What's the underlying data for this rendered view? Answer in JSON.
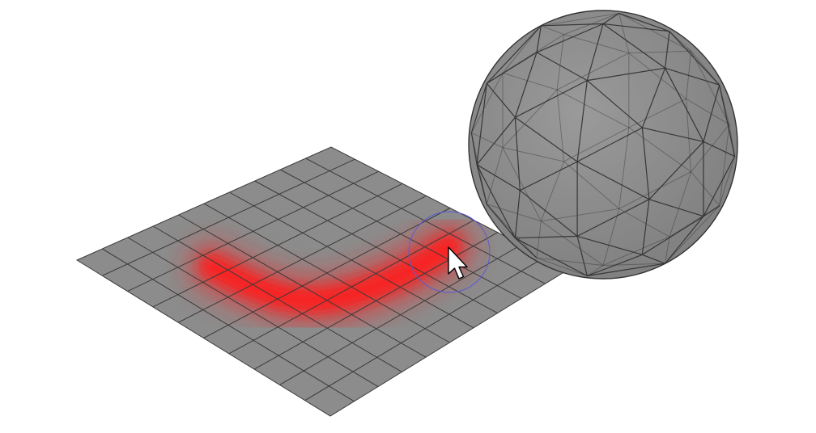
{
  "scene": {
    "ground_plane": {
      "subdivisions": 10,
      "face_color": "#8c8c8c",
      "edge_color": "#3a3a3a"
    },
    "sphere": {
      "face_color": "#8e8e8e",
      "edge_color": "#333333"
    },
    "paint_stroke": {
      "color": "#ff1a1a"
    }
  },
  "brush_cursor": {
    "ring_color": "#5b5bd6",
    "pointer": "arrow-cursor-icon"
  }
}
